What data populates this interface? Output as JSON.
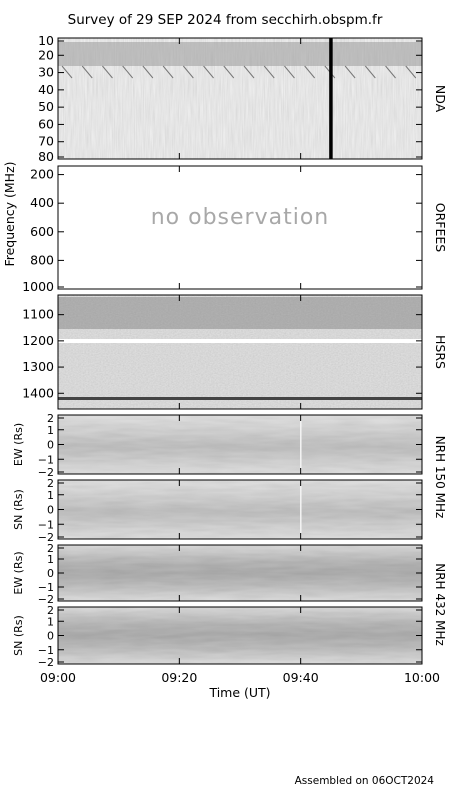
{
  "title": "Survey of 29 SEP 2024 from secchirh.obspm.fr",
  "footer": "Assembled on 06OCT2024",
  "colors": {
    "panel_border": "#000000",
    "background": "#ffffff",
    "no_obs_text": "#a8a8a8"
  },
  "chart_data": {
    "type": "heatmap",
    "x_axis": {
      "label": "Time (UT)",
      "ticks": [
        "09:00",
        "09:20",
        "09:40",
        "10:00"
      ],
      "range": [
        "09:00",
        "10:00"
      ]
    },
    "left_axis_label": "Frequency (MHz)",
    "panels": [
      {
        "id": "nda",
        "instrument": "NDA",
        "yticks": [
          "10",
          "20",
          "30",
          "40",
          "50",
          "60",
          "70",
          "80"
        ],
        "ylim": [
          10,
          80
        ],
        "ylabel": "",
        "observed": true
      },
      {
        "id": "orfees",
        "instrument": "ORFEES",
        "yticks": [
          "200",
          "400",
          "600",
          "800",
          "1000"
        ],
        "ylim": [
          140,
          1000
        ],
        "ylabel": "",
        "observed": false,
        "note": "no observation"
      },
      {
        "id": "hsrs",
        "instrument": "HSRS",
        "yticks": [
          "1100",
          "1200",
          "1300",
          "1400"
        ],
        "ylim": [
          1025,
          1460
        ],
        "ylabel": "",
        "observed": true
      },
      {
        "id": "nrh150ew",
        "instrument": "",
        "yticks": [
          "2",
          "1",
          "0",
          "−1",
          "−2"
        ],
        "ylim": [
          -2,
          2
        ],
        "ylabel": "EW (Rs)",
        "observed": true
      },
      {
        "id": "nrh150sn",
        "instrument": "",
        "yticks": [
          "2",
          "1",
          "0",
          "−1",
          "−2"
        ],
        "ylim": [
          -2,
          2
        ],
        "ylabel": "SN (Rs)",
        "observed": true
      },
      {
        "id": "nrh432ew",
        "instrument": "",
        "yticks": [
          "2",
          "1",
          "0",
          "−1",
          "−2"
        ],
        "ylim": [
          -2,
          2
        ],
        "ylabel": "EW (Rs)",
        "observed": true
      },
      {
        "id": "nrh432sn",
        "instrument": "",
        "yticks": [
          "2",
          "1",
          "0",
          "−1",
          "−2"
        ],
        "ylim": [
          -2,
          2
        ],
        "ylabel": "SN (Rs)",
        "observed": true
      }
    ],
    "nrh_labels": [
      {
        "text": "NRH 150 MHz"
      },
      {
        "text": "NRH 432 MHz"
      }
    ]
  }
}
